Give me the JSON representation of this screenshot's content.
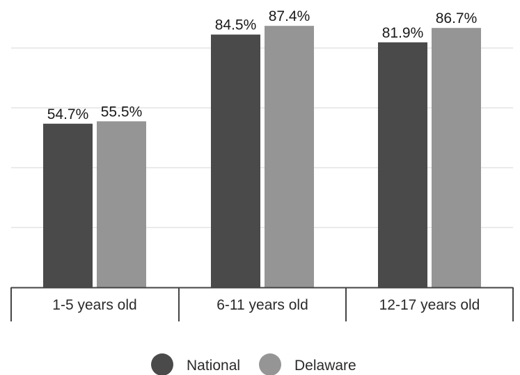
{
  "chart_data": {
    "type": "bar",
    "categories": [
      "1-5 years old",
      "6-11 years old",
      "12-17 years old"
    ],
    "series": [
      {
        "name": "National",
        "values": [
          54.7,
          84.5,
          81.9
        ],
        "labels": [
          "54.7%",
          "84.5%",
          "81.9%"
        ]
      },
      {
        "name": "Delaware",
        "values": [
          55.5,
          87.4,
          86.7
        ],
        "labels": [
          "55.5%",
          "87.4%",
          "86.7%"
        ]
      }
    ],
    "value_unit": "%",
    "ylim": [
      0,
      100
    ],
    "grid": true,
    "legend_position": "bottom",
    "title": "",
    "xlabel": "",
    "ylabel": ""
  },
  "colors": {
    "National": "#4a4a4a",
    "Delaware": "#959595",
    "gridline": "#d6d6d6",
    "axis": "#444444"
  }
}
